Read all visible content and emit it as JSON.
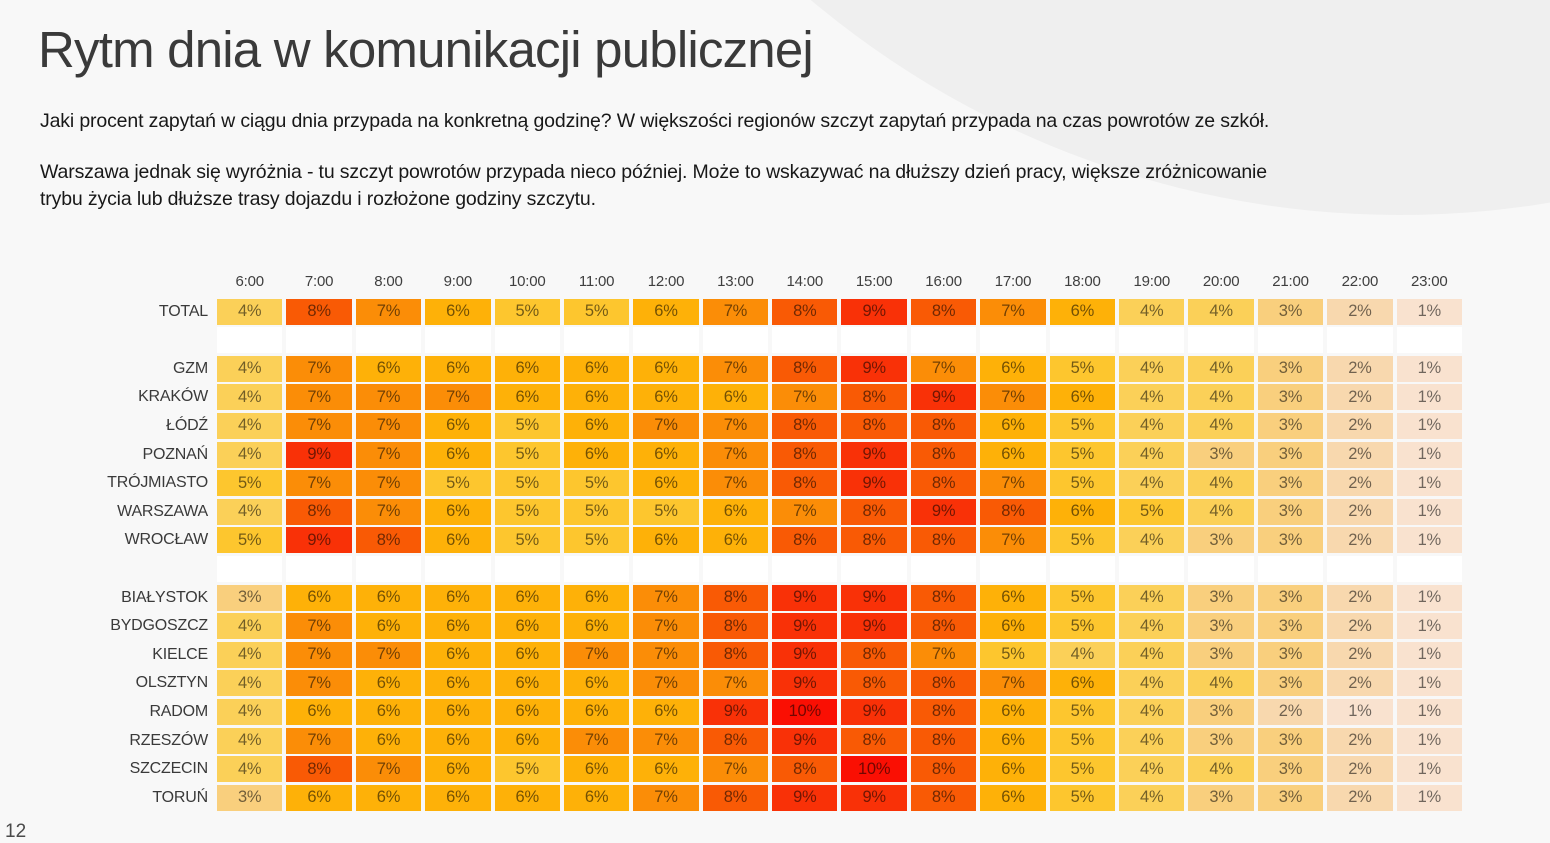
{
  "page": {
    "title": "Rytm dnia w komunikacji publicznej",
    "paragraph1": "Jaki procent zapytań w ciągu dnia przypada na konkretną godzinę? W większości regionów szczyt zapytań przypada na czas powrotów ze szkół.",
    "paragraph2_lines": [
      "Warszawa jednak się wyróżnia - tu szczyt powrotów przypada nieco później. Może to wskazywać na dłuższy dzień pracy, większe zróżnicowanie",
      "trybu życia lub dłuższe trasy dojazdu i rozłożone godziny szczytu."
    ],
    "page_number": "12",
    "background_color": "#f8f8f8",
    "blob_color": "#efefef"
  },
  "chart_data": {
    "type": "heatmap",
    "title": "Rytm dnia w komunikacji publicznej",
    "value_suffix": "%",
    "columns": [
      "6:00",
      "7:00",
      "8:00",
      "9:00",
      "10:00",
      "11:00",
      "12:00",
      "13:00",
      "14:00",
      "15:00",
      "16:00",
      "17:00",
      "18:00",
      "19:00",
      "20:00",
      "21:00",
      "22:00",
      "23:00"
    ],
    "groups": [
      {
        "rows": [
          {
            "label": "TOTAL",
            "values": [
              4,
              8,
              7,
              6,
              5,
              5,
              6,
              7,
              8,
              9,
              8,
              7,
              6,
              4,
              4,
              3,
              2,
              1
            ]
          }
        ]
      },
      {
        "rows": [
          {
            "label": "GZM",
            "values": [
              4,
              7,
              6,
              6,
              6,
              6,
              6,
              7,
              8,
              9,
              7,
              6,
              5,
              4,
              4,
              3,
              2,
              1
            ]
          },
          {
            "label": "KRAKÓW",
            "values": [
              4,
              7,
              7,
              7,
              6,
              6,
              6,
              6,
              7,
              8,
              9,
              7,
              6,
              4,
              4,
              3,
              2,
              1
            ]
          },
          {
            "label": "ŁÓDŹ",
            "values": [
              4,
              7,
              7,
              6,
              5,
              6,
              7,
              7,
              8,
              8,
              8,
              6,
              5,
              4,
              4,
              3,
              2,
              1
            ]
          },
          {
            "label": "POZNAŃ",
            "values": [
              4,
              9,
              7,
              6,
              5,
              6,
              6,
              7,
              8,
              9,
              8,
              6,
              5,
              4,
              3,
              3,
              2,
              1
            ]
          },
          {
            "label": "TRÓJMIASTO",
            "values": [
              5,
              7,
              7,
              5,
              5,
              5,
              6,
              7,
              8,
              9,
              8,
              7,
              5,
              4,
              4,
              3,
              2,
              1
            ]
          },
          {
            "label": "WARSZAWA",
            "values": [
              4,
              8,
              7,
              6,
              5,
              5,
              5,
              6,
              7,
              8,
              9,
              8,
              6,
              5,
              4,
              3,
              2,
              1
            ]
          },
          {
            "label": "WROCŁAW",
            "values": [
              5,
              9,
              8,
              6,
              5,
              5,
              6,
              6,
              8,
              8,
              8,
              7,
              5,
              4,
              3,
              3,
              2,
              1
            ]
          }
        ]
      },
      {
        "rows": [
          {
            "label": "BIAŁYSTOK",
            "values": [
              3,
              6,
              6,
              6,
              6,
              6,
              7,
              8,
              9,
              9,
              8,
              6,
              5,
              4,
              3,
              3,
              2,
              1
            ]
          },
          {
            "label": "BYDGOSZCZ",
            "values": [
              4,
              7,
              6,
              6,
              6,
              6,
              7,
              8,
              9,
              9,
              8,
              6,
              5,
              4,
              3,
              3,
              2,
              1
            ]
          },
          {
            "label": "KIELCE",
            "values": [
              4,
              7,
              7,
              6,
              6,
              7,
              7,
              8,
              9,
              8,
              7,
              5,
              4,
              4,
              3,
              3,
              2,
              1
            ]
          },
          {
            "label": "OLSZTYN",
            "values": [
              4,
              7,
              6,
              6,
              6,
              6,
              7,
              7,
              9,
              8,
              8,
              7,
              6,
              4,
              4,
              3,
              2,
              1
            ]
          },
          {
            "label": "RADOM",
            "values": [
              4,
              6,
              6,
              6,
              6,
              6,
              6,
              9,
              10,
              9,
              8,
              6,
              5,
              4,
              3,
              2,
              1,
              1
            ]
          },
          {
            "label": "RZESZÓW",
            "values": [
              4,
              7,
              6,
              6,
              6,
              7,
              7,
              8,
              9,
              8,
              8,
              6,
              5,
              4,
              3,
              3,
              2,
              1
            ]
          },
          {
            "label": "SZCZECIN",
            "values": [
              4,
              8,
              7,
              6,
              5,
              6,
              6,
              7,
              8,
              10,
              8,
              6,
              5,
              4,
              4,
              3,
              2,
              1
            ]
          },
          {
            "label": "TORUŃ",
            "values": [
              3,
              6,
              6,
              6,
              6,
              6,
              7,
              8,
              9,
              9,
              8,
              6,
              5,
              4,
              3,
              3,
              2,
              1
            ]
          }
        ]
      }
    ],
    "color_scale": {
      "1": "#f9e2cf",
      "2": "#f8d8ae",
      "3": "#f9cf7d",
      "4": "#fbd058",
      "5": "#fdc62e",
      "6": "#feb108",
      "7": "#fb8d07",
      "8": "#f95a05",
      "9": "#f93107",
      "10": "#fa0f03"
    },
    "cell_text_color": "rgba(0,0,0,0.55)",
    "spacer_row_color": "#ffffff",
    "legend": "none",
    "grid": "off"
  }
}
